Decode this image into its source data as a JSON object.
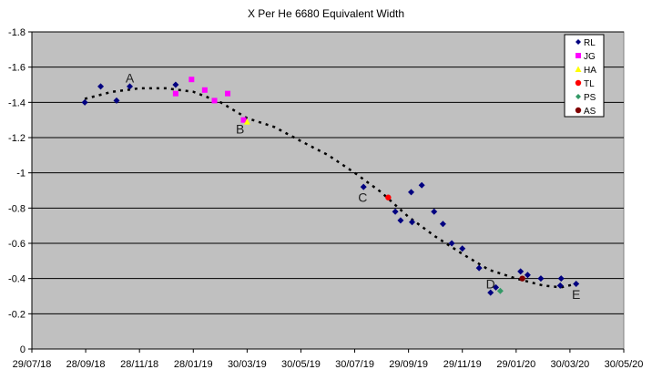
{
  "chart_data": {
    "type": "scatter",
    "title": "X Per He 6680 Equivalent Width",
    "xlabel": "",
    "ylabel": "",
    "xlim": [
      "29/07/18",
      "30/05/20"
    ],
    "ylim": [
      0,
      -1.8
    ],
    "y_axis_reversed": true,
    "grid": "horizontal",
    "legend_position": "top-right",
    "x_ticks": [
      "29/07/18",
      "28/09/18",
      "28/11/18",
      "28/01/19",
      "30/03/19",
      "30/05/19",
      "30/07/19",
      "29/09/19",
      "29/11/19",
      "29/01/20",
      "30/03/20",
      "30/05/20"
    ],
    "y_ticks": [
      -1.8,
      -1.6,
      -1.4,
      -1.2,
      -1,
      -0.8,
      -0.6,
      -0.4,
      -0.2,
      0
    ],
    "y_tick_labels": [
      "-1.8",
      "-1.6",
      "-1.4",
      "-1.2",
      "-1",
      "-0.8",
      "-0.6",
      "-0.4",
      "-0.2",
      "0"
    ],
    "colors": {
      "plot_background": "#c0c0c0"
    },
    "series": [
      {
        "name": "RL",
        "marker": "diamond",
        "color": "#000080",
        "points": [
          [
            "27/09/18",
            -1.4
          ],
          [
            "15/10/18",
            -1.49
          ],
          [
            "02/11/18",
            -1.41
          ],
          [
            "17/11/18",
            -1.49
          ],
          [
            "08/01/19",
            -1.5
          ],
          [
            "09/08/19",
            -0.92
          ],
          [
            "14/09/19",
            -0.78
          ],
          [
            "20/09/19",
            -0.73
          ],
          [
            "02/10/19",
            -0.89
          ],
          [
            "03/10/19",
            -0.72
          ],
          [
            "14/10/19",
            -0.93
          ],
          [
            "28/10/19",
            -0.78
          ],
          [
            "07/11/19",
            -0.71
          ],
          [
            "17/11/19",
            -0.6
          ],
          [
            "29/11/19",
            -0.57
          ],
          [
            "18/12/19",
            -0.46
          ],
          [
            "31/12/19",
            -0.32
          ],
          [
            "06/01/20",
            -0.35
          ],
          [
            "03/02/20",
            -0.44
          ],
          [
            "11/02/20",
            -0.42
          ],
          [
            "26/02/20",
            -0.4
          ],
          [
            "19/03/20",
            -0.36
          ],
          [
            "20/03/20",
            -0.4
          ],
          [
            "06/04/20",
            -0.37
          ]
        ]
      },
      {
        "name": "JG",
        "marker": "square",
        "color": "#ff00ff",
        "points": [
          [
            "08/01/19",
            -1.45
          ],
          [
            "26/01/19",
            -1.53
          ],
          [
            "10/02/19",
            -1.47
          ],
          [
            "21/02/19",
            -1.41
          ],
          [
            "08/03/19",
            -1.45
          ],
          [
            "26/03/19",
            -1.3
          ]
        ]
      },
      {
        "name": "HA",
        "marker": "triangle",
        "color": "#ffff00",
        "points": [
          [
            "30/03/19",
            -1.29
          ]
        ]
      },
      {
        "name": "TL",
        "marker": "circle",
        "color": "#ff0000",
        "points": [
          [
            "06/09/19",
            -0.86
          ]
        ]
      },
      {
        "name": "PS",
        "marker": "diamond",
        "color": "#339966",
        "points": [
          [
            "11/01/20",
            -0.33
          ]
        ]
      },
      {
        "name": "AS",
        "marker": "circle",
        "color": "#800000",
        "points": [
          [
            "05/02/20",
            -0.4
          ]
        ]
      }
    ],
    "trendline": {
      "style": "dotted",
      "color": "#000000",
      "points": [
        [
          "27/09/18",
          -1.42
        ],
        [
          "28/10/18",
          -1.46
        ],
        [
          "28/11/18",
          -1.48
        ],
        [
          "28/12/18",
          -1.48
        ],
        [
          "28/01/19",
          -1.46
        ],
        [
          "28/02/19",
          -1.4
        ],
        [
          "30/03/19",
          -1.31
        ],
        [
          "30/04/19",
          -1.26
        ],
        [
          "30/05/19",
          -1.18
        ],
        [
          "30/06/19",
          -1.1
        ],
        [
          "30/07/19",
          -1.0
        ],
        [
          "29/08/19",
          -0.89
        ],
        [
          "29/09/19",
          -0.75
        ],
        [
          "29/10/19",
          -0.64
        ],
        [
          "29/11/19",
          -0.54
        ],
        [
          "29/12/19",
          -0.45
        ],
        [
          "29/01/20",
          -0.4
        ],
        [
          "29/02/20",
          -0.36
        ],
        [
          "20/03/20",
          -0.35
        ],
        [
          "06/04/20",
          -0.37
        ]
      ]
    },
    "annotations": [
      {
        "text": "A",
        "x": "17/11/18",
        "y": -1.54
      },
      {
        "text": "B",
        "x": "22/03/19",
        "y": -1.25
      },
      {
        "text": "C",
        "x": "08/08/19",
        "y": -0.86
      },
      {
        "text": "D",
        "x": "31/12/19",
        "y": -0.37
      },
      {
        "text": "E",
        "x": "06/04/20",
        "y": -0.31
      }
    ]
  }
}
